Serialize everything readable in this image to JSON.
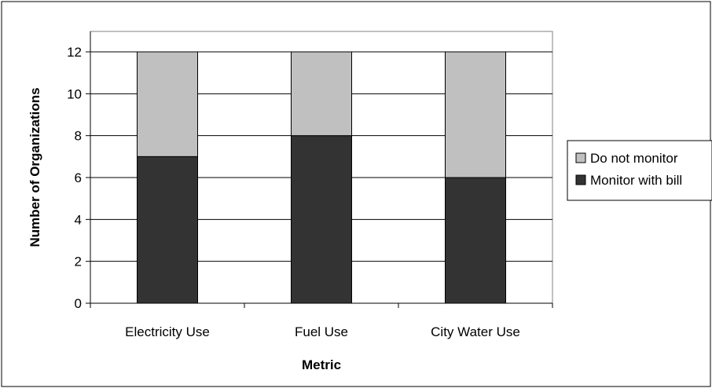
{
  "chart_data": {
    "type": "bar",
    "stacked": true,
    "categories": [
      "Electricity Use",
      "Fuel Use",
      "City Water Use"
    ],
    "series": [
      {
        "name": "Monitor with bill",
        "values": [
          7,
          8,
          6
        ],
        "color": "#333333"
      },
      {
        "name": "Do not monitor",
        "values": [
          5,
          4,
          6
        ],
        "color": "#c0c0c0"
      }
    ],
    "xlabel": "Metric",
    "ylabel": "Number of Organizations",
    "ylim": [
      0,
      12
    ],
    "yticks": [
      0,
      2,
      4,
      6,
      8,
      10,
      12
    ],
    "grid": true,
    "legend": {
      "position": "right",
      "order": [
        "Do not monitor",
        "Monitor with bill"
      ]
    }
  }
}
